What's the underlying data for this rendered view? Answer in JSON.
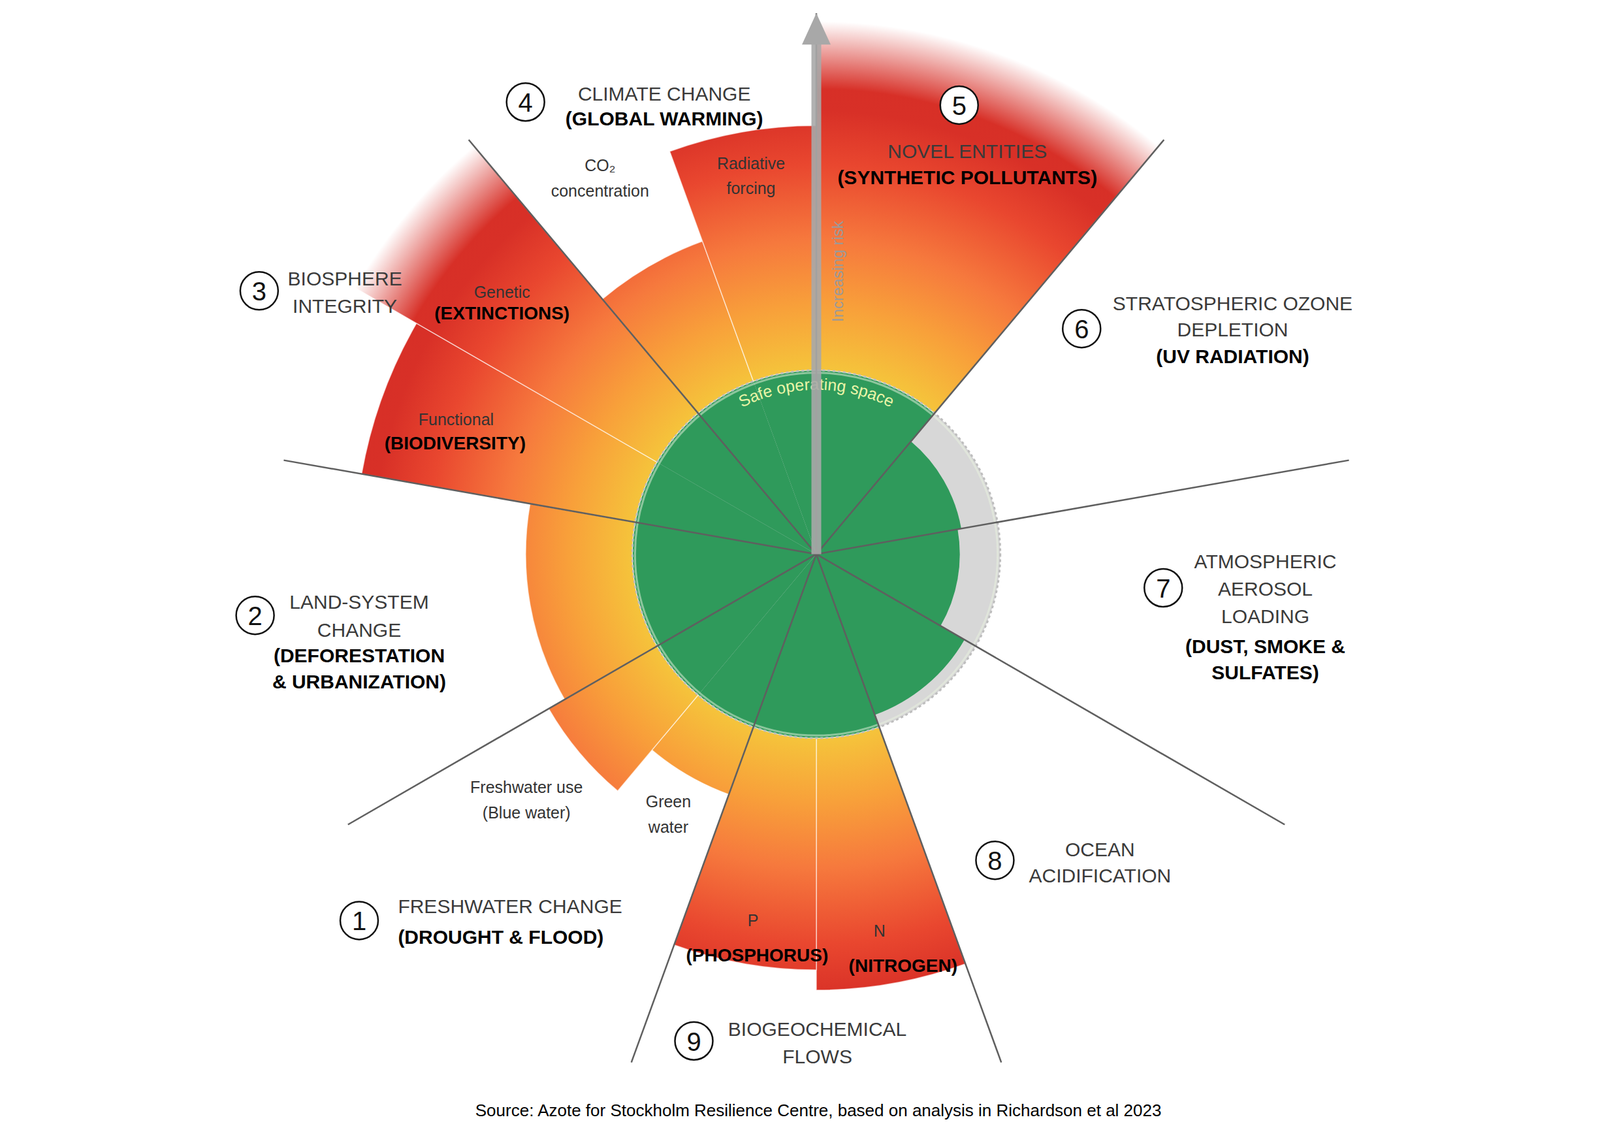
{
  "chart_data": {
    "type": "polar_bar",
    "ylim": [
      0,
      2.94
    ],
    "tick_labels": false,
    "safe_boundary": 1,
    "center_label": "Safe operating space",
    "axis_label": "Increasing risk",
    "source": "Source: Azote for Stockholm Resilience Centre, based on analysis in Richardson et al 2023",
    "boundaries": [
      {
        "number": 1,
        "name": [
          "FRESHWATER CHANGE"
        ],
        "subtitle": [
          "(DROUGHT & FLOOD)"
        ],
        "segments": [
          {
            "label": [
              "Green",
              "water"
            ],
            "value": 1.39
          },
          {
            "label": [
              "Freshwater use",
              "(Blue water)"
            ],
            "value": 1.68
          }
        ]
      },
      {
        "number": 2,
        "name": [
          "LAND-SYSTEM",
          "CHANGE"
        ],
        "subtitle": [
          "(DEFORESTATION",
          "& URBANIZATION)"
        ],
        "segments": [
          {
            "value": 1.58
          }
        ]
      },
      {
        "number": 3,
        "name": [
          "BIOSPHERE",
          "INTEGRITY"
        ],
        "segments": [
          {
            "label": [
              "Functional"
            ],
            "sublabel": [
              "(BIODIVERSITY)"
            ],
            "value": 2.51
          },
          {
            "label": [
              "Genetic"
            ],
            "sublabel": [
              "(EXTINCTIONS)"
            ],
            "value": 3.3
          }
        ]
      },
      {
        "number": 4,
        "name": [
          "CLIMATE CHANGE"
        ],
        "subtitle": [
          "(GLOBAL WARMING)"
        ],
        "segments": [
          {
            "label": [
              "CO₂",
              "concentration"
            ],
            "value": 1.81
          },
          {
            "label": [
              "Radiative",
              "forcing"
            ],
            "value": 2.33
          }
        ]
      },
      {
        "number": 5,
        "name": [
          "NOVEL ENTITIES"
        ],
        "subtitle": [
          "(SYNTHETIC POLLUTANTS)"
        ],
        "segments": [
          {
            "value": 3.3
          }
        ]
      },
      {
        "number": 6,
        "name": [
          "STRATOSPHERIC OZONE",
          "DEPLETION"
        ],
        "subtitle": [
          "(UV RADIATION)"
        ],
        "segments": [
          {
            "value": 0.8
          }
        ]
      },
      {
        "number": 7,
        "name": [
          "ATMOSPHERIC",
          "AEROSOL",
          "LOADING"
        ],
        "subtitle": [
          "(DUST, SMOKE &",
          "SULFATES)"
        ],
        "segments": [
          {
            "value": 0.78
          }
        ]
      },
      {
        "number": 8,
        "name": [
          "OCEAN",
          "ACIDIFICATION"
        ],
        "segments": [
          {
            "value": 0.93
          }
        ]
      },
      {
        "number": 9,
        "name": [
          "BIOGEOCHEMICAL",
          "FLOWS"
        ],
        "segments": [
          {
            "label": [
              "N"
            ],
            "sublabel": [
              "(NITROGEN)"
            ],
            "value": 2.37
          },
          {
            "label": [
              "P"
            ],
            "sublabel": [
              "(PHOSPHORUS)"
            ],
            "value": 2.26
          }
        ]
      }
    ]
  }
}
